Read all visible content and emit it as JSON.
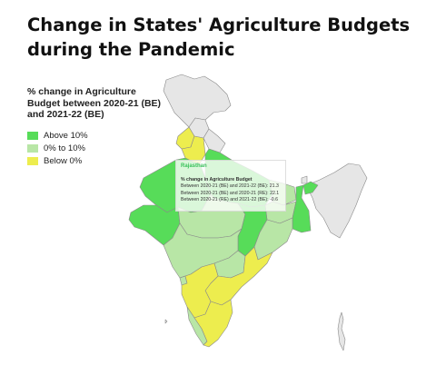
{
  "title_line1": "Change in States' Agriculture Budgets",
  "title_line2": "during the Pandemic",
  "legend": {
    "title": "% change in Agriculture Budget between 2020-21 (BE) and 2021-22 (BE)",
    "items": [
      {
        "label": "Above 10%",
        "color": "#57dc59"
      },
      {
        "label": "0% to 10%",
        "color": "#b8e6a6"
      },
      {
        "label": "Below 0%",
        "color": "#eded4e"
      }
    ]
  },
  "colors": {
    "no_data": "#e6e6e6",
    "border": "#8a8a8a",
    "above_10": "#57dc59",
    "zero_to_10": "#b8e6a6",
    "below_0": "#eded4e"
  },
  "tooltip": {
    "state": "Rajasthan",
    "heading": "% change in Agriculture Budget",
    "rows": [
      {
        "label": "Between 2020-21 (BE) and 2021-22 (BE):",
        "value": "21.3"
      },
      {
        "label": "Between 2020-21 (BE) and 2020-21 (RE):",
        "value": "22.1"
      },
      {
        "label": "Between 2020-21 (RE) and 2021-22 (BE):",
        "value": "-0.6"
      }
    ]
  }
}
